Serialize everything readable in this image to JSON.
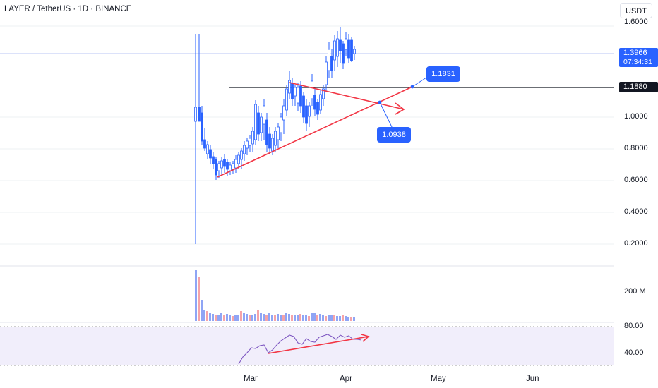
{
  "header": {
    "symbol_title": "LAYER / TetherUS · 1D · BINANCE",
    "currency_button": "USDT"
  },
  "price_axis": {
    "ticks": [
      "1.6000",
      "1.0000",
      "0.8000",
      "0.6000",
      "0.4000",
      "0.2000"
    ],
    "current_price": "1.3966",
    "countdown": "07:34:31",
    "level_label": "1.1880"
  },
  "volume_axis": {
    "tick": "200 M"
  },
  "rsi_axis": {
    "ticks": [
      "80.00",
      "40.00"
    ]
  },
  "time_axis": {
    "ticks": [
      "Mar",
      "Apr",
      "May",
      "Jun"
    ]
  },
  "annotations": {
    "callout_upper": "1.1831",
    "callout_lower": "1.0938"
  },
  "colors": {
    "candle": "#2962ff",
    "drawing_line": "#f23645",
    "volume_up": "#8fa5f5",
    "volume_down": "#f5a3a8",
    "rsi_line": "#7e57c2",
    "rsi_band": "#f1eefb",
    "accent": "#2962ff"
  }
}
